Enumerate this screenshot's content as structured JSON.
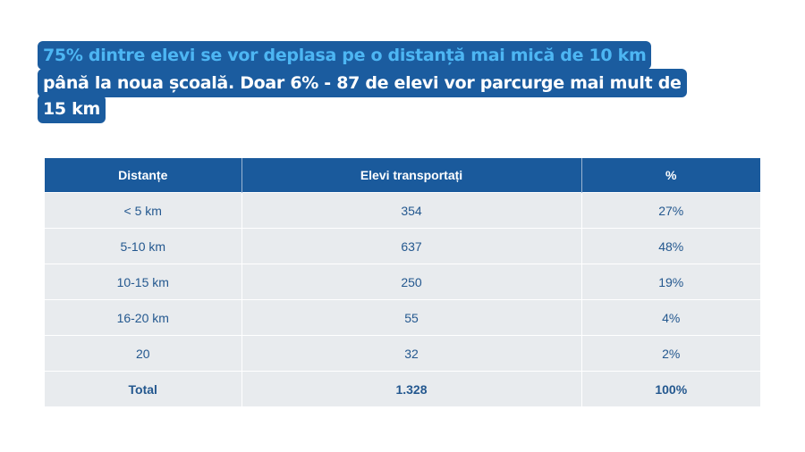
{
  "headline": {
    "line1": "75% dintre elevi se vor deplasa pe o distanță mai mică de 10 km",
    "line2": "până la noua școală. Doar 6% - 87 de elevi vor parcurge mai mult de",
    "line3": "15 km"
  },
  "table": {
    "headers": [
      "Distanțe",
      "Elevi transportați",
      "%"
    ],
    "rows": [
      [
        "< 5 km",
        "354",
        "27%"
      ],
      [
        "5-10 km",
        "637",
        "48%"
      ],
      [
        "10-15 km",
        "250",
        "19%"
      ],
      [
        "16-20 km",
        "55",
        "4%"
      ],
      [
        "20",
        "32",
        "2%"
      ],
      [
        "Total",
        "1.328",
        "100%"
      ]
    ]
  }
}
